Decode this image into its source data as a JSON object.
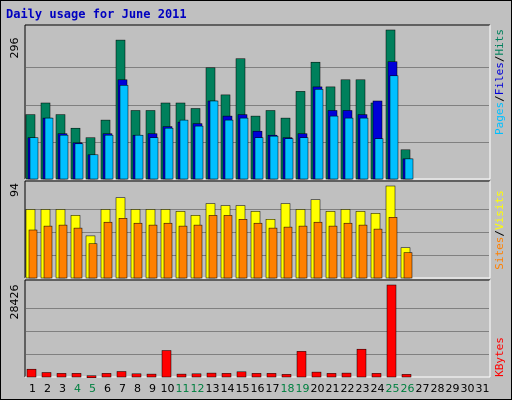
{
  "title": "Daily usage for June 2011",
  "colors": {
    "hits": "#00805c",
    "files": "#0000d8",
    "pages": "#00c0ff",
    "visits": "#ffff00",
    "sites": "#ff8000",
    "kbytes": "#ff0000",
    "weekday_label": "#000000",
    "weekend_label": "#008040"
  },
  "panel_labels": {
    "hits_max": "296",
    "visits_max": "94",
    "kbytes_max": "28426"
  },
  "legend_top": [
    {
      "text": "Pages",
      "color": "#00c0ff"
    },
    {
      "text": "/",
      "color": "#000000"
    },
    {
      "text": "Files",
      "color": "#0000d8"
    },
    {
      "text": "/",
      "color": "#000000"
    },
    {
      "text": "Hits",
      "color": "#00805c"
    }
  ],
  "legend_mid": [
    {
      "text": "Sites",
      "color": "#ff8000"
    },
    {
      "text": "/",
      "color": "#000000"
    },
    {
      "text": "Visits",
      "color": "#ffff00"
    }
  ],
  "legend_bottom": [
    {
      "text": "KBytes",
      "color": "#ff0000"
    }
  ],
  "chart_data": {
    "type": "bar",
    "title": "Daily usage for June 2011",
    "categories": [
      "1",
      "2",
      "3",
      "4",
      "5",
      "6",
      "7",
      "8",
      "9",
      "10",
      "11",
      "12",
      "13",
      "14",
      "15",
      "16",
      "17",
      "18",
      "19",
      "20",
      "21",
      "22",
      "23",
      "24",
      "25",
      "26",
      "27",
      "28",
      "29",
      "30",
      "31"
    ],
    "weekend_days": [
      "4",
      "5",
      "11",
      "12",
      "18",
      "19",
      "25",
      "26"
    ],
    "panels": [
      {
        "name": "hits_files_pages",
        "ylim": [
          0,
          296
        ],
        "series": [
          {
            "name": "Hits",
            "values": [
              128,
              151,
              128,
              101,
              82,
              117,
              276,
              136,
              136,
              151,
              151,
              140,
              221,
              167,
              239,
              125,
              136,
              121,
              174,
              232,
              183,
              197,
              197,
              151,
              296,
              58,
              0,
              0,
              0,
              0,
              0
            ]
          },
          {
            "name": "Files",
            "values": [
              82,
              121,
              90,
              72,
              48,
              90,
              197,
              87,
              90,
              104,
              113,
              110,
              155,
              125,
              128,
              95,
              87,
              82,
              90,
              183,
              136,
              136,
              128,
              155,
              233,
              40,
              0,
              0,
              0,
              0,
              0
            ]
          },
          {
            "name": "Pages",
            "values": [
              82,
              121,
              87,
              70,
              48,
              87,
              186,
              87,
              82,
              101,
              117,
              105,
              155,
              117,
              121,
              82,
              85,
              80,
              82,
              178,
              125,
              121,
              121,
              80,
              205,
              40,
              0,
              0,
              0,
              0,
              0
            ]
          }
        ]
      },
      {
        "name": "visits_sites",
        "ylim": [
          0,
          94
        ],
        "series": [
          {
            "name": "Visits",
            "values": [
              70,
              70,
              70,
              64,
              43,
              70,
              82,
              70,
              70,
              70,
              68,
              64,
              76,
              74,
              74,
              68,
              60,
              76,
              70,
              80,
              68,
              70,
              68,
              66,
              94,
              31,
              0,
              0,
              0,
              0,
              0
            ]
          },
          {
            "name": "Sites",
            "values": [
              49,
              53,
              54,
              51,
              35,
              57,
              61,
              56,
              54,
              56,
              53,
              54,
              64,
              64,
              60,
              56,
              51,
              52,
              53,
              57,
              53,
              56,
              54,
              50,
              62,
              26,
              0,
              0,
              0,
              0,
              0
            ]
          }
        ]
      },
      {
        "name": "kbytes",
        "ylim": [
          0,
          28426
        ],
        "series": [
          {
            "name": "KBytes",
            "values": [
              2400,
              1400,
              1100,
              1100,
              400,
              1100,
              1700,
              1000,
              900,
              8200,
              900,
              1000,
              1200,
              1100,
              1600,
              1100,
              1100,
              800,
              7900,
              1500,
              1100,
              1200,
              8600,
              1100,
              28426,
              800,
              0,
              0,
              0,
              0,
              0
            ]
          }
        ]
      }
    ],
    "xlabel": "",
    "ylabel": "",
    "grid": true,
    "legend": "right"
  }
}
